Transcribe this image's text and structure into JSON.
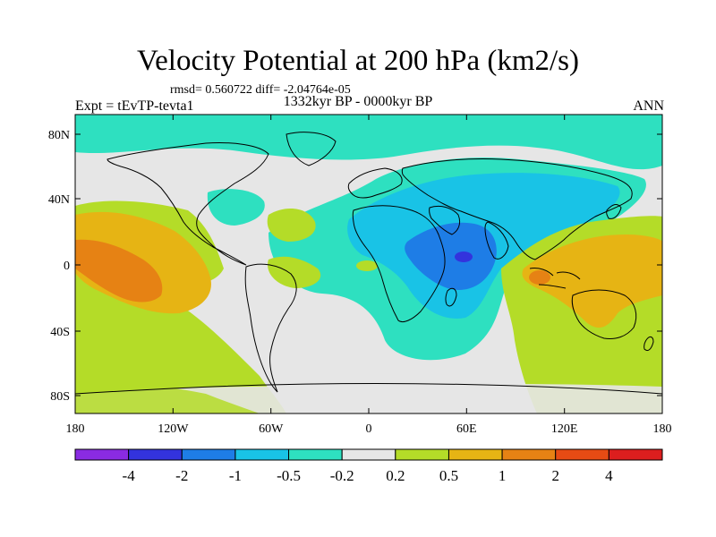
{
  "title": "Velocity Potential at 200 hPa (km2/s)",
  "stats": "rmsd= 0.560722 diff= -2.04764e-05",
  "left_label": "Expt = tEvTP-tevta1",
  "center_label": "1332kyr BP - 0000kyr BP",
  "right_label": "ANN",
  "x_ticks": [
    "180",
    "120W",
    "60W",
    "0",
    "60E",
    "120E",
    "180"
  ],
  "y_ticks": [
    "80N",
    "40N",
    "0",
    "40S",
    "80S"
  ],
  "colorbar": {
    "colors": [
      "#8a2be2",
      "#3333dd",
      "#1e7de6",
      "#19c3e6",
      "#2ee0c0",
      "#e6e6e6",
      "#b4dc28",
      "#e6b414",
      "#e68214",
      "#e64b14",
      "#dc1e1e"
    ],
    "labels": [
      "-4",
      "-2",
      "-1",
      "-0.5",
      "-0.2",
      "0.2",
      "0.5",
      "1",
      "2",
      "4"
    ]
  }
}
